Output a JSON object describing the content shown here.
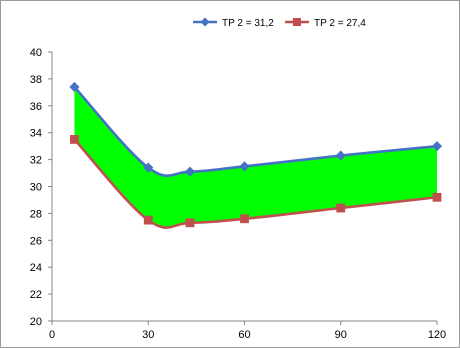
{
  "chart_data": {
    "type": "line",
    "x": [
      7,
      30,
      43,
      60,
      90,
      120
    ],
    "series": [
      {
        "name": "TP 2 = 31,2",
        "values": [
          37.4,
          31.4,
          31.1,
          31.5,
          32.3,
          33.0
        ],
        "color": "#4472C4",
        "marker": "diamond"
      },
      {
        "name": "TP 2 = 27,4",
        "values": [
          33.5,
          27.5,
          27.3,
          27.6,
          28.4,
          29.2
        ],
        "color": "#C0504D",
        "marker": "square"
      }
    ],
    "band_fill_color": "#00FF00",
    "xlim": [
      0,
      120
    ],
    "ylim": [
      20,
      40
    ],
    "xticks": [
      "0",
      "30",
      "60",
      "90",
      "120"
    ],
    "yticks": [
      "20",
      "22",
      "24",
      "26",
      "28",
      "30",
      "32",
      "34",
      "36",
      "38",
      "40"
    ],
    "legend_position": "top",
    "grid": false
  }
}
